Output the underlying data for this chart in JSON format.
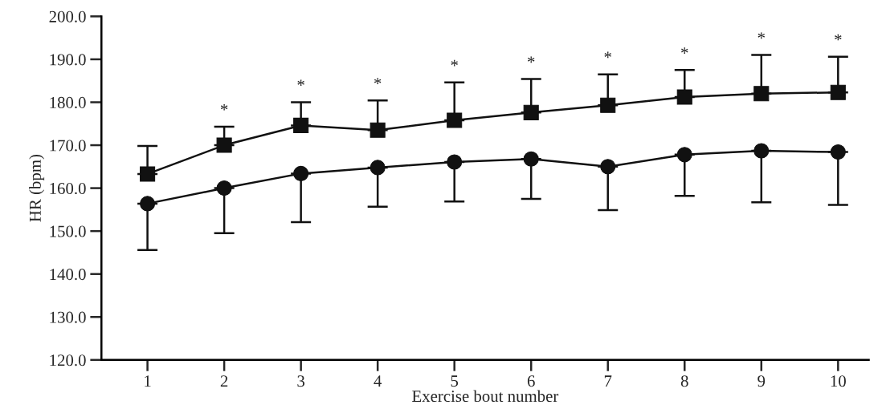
{
  "chart_data": {
    "type": "line",
    "xlabel": "Exercise bout number",
    "ylabel": "HR (bpm)",
    "categories": [
      "1",
      "2",
      "3",
      "4",
      "5",
      "6",
      "7",
      "8",
      "9",
      "10"
    ],
    "ylim": [
      120,
      200
    ],
    "yticks": [
      {
        "value": 120,
        "label": "120.0"
      },
      {
        "value": 130,
        "label": "130.0"
      },
      {
        "value": 140,
        "label": "140.0"
      },
      {
        "value": 150,
        "label": "150.0"
      },
      {
        "value": 160,
        "label": "160.0"
      },
      {
        "value": 170,
        "label": "170.0"
      },
      {
        "value": 180,
        "label": "180.0"
      },
      {
        "value": 190,
        "label": "190.0"
      },
      {
        "value": 200,
        "label": "200.0"
      }
    ],
    "grid": false,
    "legend": false,
    "line_style": "solid",
    "series": [
      {
        "color": "#111111",
        "marker": "square",
        "values": [
          163.3,
          170.0,
          174.6,
          173.5,
          175.8,
          177.6,
          179.3,
          181.2,
          182.0,
          182.3
        ],
        "errors": [
          [
            163.3,
            169.8
          ],
          [
            170.0,
            174.3
          ],
          [
            174.6,
            180.0
          ],
          [
            173.5,
            180.4
          ],
          [
            175.8,
            184.6
          ],
          [
            177.6,
            185.4
          ],
          [
            179.3,
            186.5
          ],
          [
            181.2,
            187.5
          ],
          [
            182.0,
            191.0
          ],
          [
            182.3,
            190.6
          ]
        ]
      },
      {
        "color": "#111111",
        "marker": "circle",
        "values": [
          156.4,
          160.0,
          163.4,
          164.8,
          166.1,
          166.8,
          165.0,
          167.8,
          168.7,
          168.4
        ],
        "errors": [
          [
            145.6,
            156.4
          ],
          [
            149.5,
            160.0
          ],
          [
            152.1,
            163.4
          ],
          [
            155.7,
            164.8
          ],
          [
            156.9,
            166.1
          ],
          [
            157.5,
            166.8
          ],
          [
            154.9,
            165.0
          ],
          [
            158.2,
            167.8
          ],
          [
            156.7,
            168.7
          ],
          [
            156.1,
            168.4
          ]
        ]
      }
    ],
    "annotations": [
      {
        "text": "*",
        "x": "2",
        "y": 174.3
      },
      {
        "text": "*",
        "x": "3",
        "y": 180.0
      },
      {
        "text": "*",
        "x": "4",
        "y": 180.4
      },
      {
        "text": "*",
        "x": "5",
        "y": 184.6
      },
      {
        "text": "*",
        "x": "6",
        "y": 185.4
      },
      {
        "text": "*",
        "x": "7",
        "y": 186.5
      },
      {
        "text": "*",
        "x": "8",
        "y": 187.5
      },
      {
        "text": "*",
        "x": "9",
        "y": 191.0
      },
      {
        "text": "*",
        "x": "10",
        "y": 190.6
      }
    ]
  }
}
